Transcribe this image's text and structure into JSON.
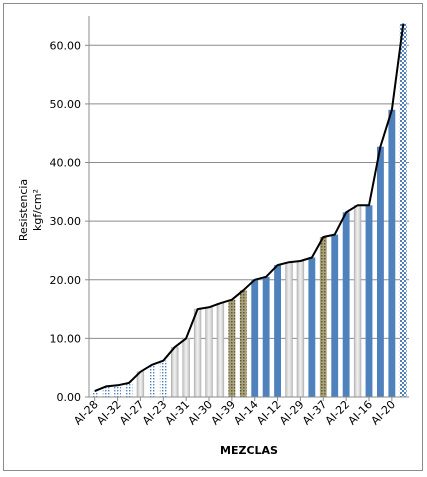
{
  "chart_data": {
    "type": "bar",
    "title": "",
    "ylabel_line1": "Resistencia",
    "ylabel_line2": "kgf/cm²",
    "xlabel": "MEZCLAS",
    "ylim": [
      0,
      65
    ],
    "yticks": [
      "0.00",
      "10.00",
      "20.00",
      "30.00",
      "40.00",
      "50.00",
      "60.00"
    ],
    "grid": true,
    "legend": "none",
    "x_tick_labels": [
      "AI-28",
      "AI-32",
      "AI-27",
      "AI-23",
      "AI-31",
      "AI-30",
      "AI-39",
      "AI-14",
      "AI-12",
      "AI-29",
      "AI-37",
      "AI-22",
      "AI-16",
      "AI-20"
    ],
    "values": [
      1.0,
      1.8,
      2.0,
      2.4,
      4.3,
      5.5,
      6.2,
      8.5,
      10.0,
      15.0,
      15.3,
      16.0,
      16.6,
      18.2,
      20.0,
      20.5,
      22.5,
      23.0,
      23.2,
      23.8,
      27.3,
      27.7,
      31.5,
      32.7,
      32.7,
      42.7,
      49.0,
      63.7
    ],
    "bar_styles": [
      "dot",
      "dot",
      "dot",
      "dot",
      "gray",
      "dot",
      "dot",
      "gray",
      "gray",
      "gray",
      "gray",
      "gray",
      "olive",
      "olive",
      "blue",
      "blue",
      "blue",
      "gray",
      "gray",
      "blue",
      "olive",
      "blue",
      "blue",
      "gray",
      "blue",
      "blue",
      "blue",
      "check"
    ],
    "colors": {
      "blue": "#4f81bd",
      "gray": "#d9d9d9",
      "olive": "#8b8455",
      "dot": "#4f81bd",
      "check": "#4f81bd",
      "line": "#000000",
      "grid": "#8c8c8c"
    }
  }
}
